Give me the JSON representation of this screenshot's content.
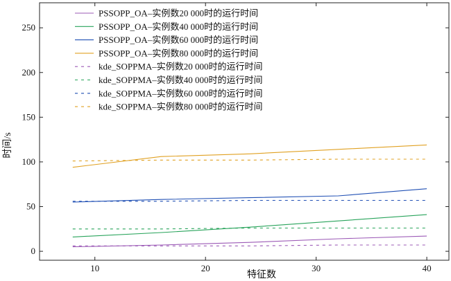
{
  "chart_data": {
    "type": "line",
    "xlabel": "特征数",
    "ylabel": "时间/s",
    "xlim": [
      5,
      42
    ],
    "ylim": [
      -10,
      278
    ],
    "xticks": [
      10,
      20,
      30,
      40
    ],
    "yticks": [
      0,
      50,
      100,
      150,
      200,
      250
    ],
    "grid": false,
    "legend_position": "top-left",
    "x": [
      8,
      16,
      24,
      32,
      40
    ],
    "series": [
      {
        "name": "PSSOPP_OA–实例数20 000时的运行时间",
        "color": "#9b59b6",
        "dash": false,
        "values": [
          5,
          7,
          10,
          14,
          17
        ]
      },
      {
        "name": "PSSOPP_OA–实例数40 000时的运行时间",
        "color": "#27a35a",
        "dash": false,
        "values": [
          16,
          21,
          27,
          34,
          41
        ]
      },
      {
        "name": "PSSOPP_OA–实例数60 000时的运行时间",
        "color": "#1f4fb4",
        "dash": false,
        "values": [
          55,
          58,
          60,
          62,
          70
        ]
      },
      {
        "name": "PSSOPP_OA–实例数80 000时的运行时间",
        "color": "#e0a020",
        "dash": false,
        "values": [
          94,
          106,
          109,
          114,
          119
        ]
      },
      {
        "name": "kde_SOPPMA–实例数20 000时的运行时间",
        "color": "#9b59b6",
        "dash": true,
        "values": [
          6,
          6,
          6,
          7,
          7
        ]
      },
      {
        "name": "kde_SOPPMA–实例数40 000时的运行时间",
        "color": "#27a35a",
        "dash": true,
        "values": [
          25,
          25,
          26,
          26,
          26
        ]
      },
      {
        "name": "kde_SOPPMA–实例数60 000时的运行时间",
        "color": "#1f4fb4",
        "dash": true,
        "values": [
          56,
          56,
          57,
          57,
          57
        ]
      },
      {
        "name": "kde_SOPPMA–实例数80 000时的运行时间",
        "color": "#e0a020",
        "dash": true,
        "values": [
          101,
          102,
          102,
          103,
          103
        ]
      }
    ]
  }
}
